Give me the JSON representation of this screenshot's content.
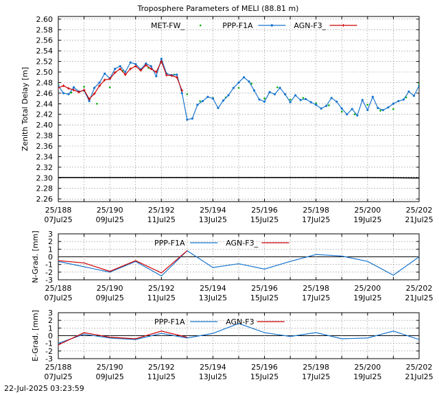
{
  "figure": {
    "title": "Troposphere Parameters of MELI (88.81 m)",
    "timestamp": "22-Jul-2025 03:23:59"
  },
  "x_ticks": [
    {
      "line1": "25/188",
      "line2": "07Jul25",
      "day": 188
    },
    {
      "line1": "25/190",
      "line2": "09Jul25",
      "day": 190
    },
    {
      "line1": "25/192",
      "line2": "11Jul25",
      "day": 192
    },
    {
      "line1": "25/194",
      "line2": "13Jul25",
      "day": 194
    },
    {
      "line1": "25/196",
      "line2": "15Jul25",
      "day": 196
    },
    {
      "line1": "25/198",
      "line2": "17Jul25",
      "day": 198
    },
    {
      "line1": "25/200",
      "line2": "19Jul25",
      "day": 200
    },
    {
      "line1": "25/202",
      "line2": "21Jul25",
      "day": 202
    }
  ],
  "colors": {
    "met": "#00aa00",
    "ppp": "#1874cd",
    "agn": "#cc0000",
    "flat": "#000000"
  },
  "chart_data": [
    {
      "type": "line",
      "id": "ztd",
      "ylabel": "Zenith Total Delay [m]",
      "xlim": [
        188,
        202
      ],
      "ylim": [
        2.255,
        2.605
      ],
      "yticks": [
        2.26,
        2.28,
        2.3,
        2.32,
        2.34,
        2.36,
        2.38,
        2.4,
        2.42,
        2.44,
        2.46,
        2.48,
        2.5,
        2.52,
        2.54,
        2.56,
        2.58,
        2.6
      ],
      "grid": true,
      "legend_placement": "top-center",
      "series": [
        {
          "name": "MET-FW_",
          "style": "dots",
          "color": "#00aa00",
          "x": [
            188.0,
            188.5,
            189.0,
            189.5,
            190.0,
            190.5,
            191.0,
            191.5,
            192.0,
            192.5,
            193.0,
            193.5,
            194.0,
            194.5,
            195.0,
            195.5,
            196.0,
            196.5,
            197.0,
            197.5,
            198.0,
            198.5,
            199.0,
            199.5,
            200.0,
            200.5,
            201.0,
            201.5,
            202.0
          ],
          "y": [
            2.476,
            2.461,
            2.472,
            2.44,
            2.471,
            2.502,
            2.515,
            2.508,
            2.525,
            2.495,
            2.458,
            2.445,
            2.451,
            2.452,
            2.47,
            2.478,
            2.45,
            2.471,
            2.448,
            2.451,
            2.441,
            2.437,
            2.425,
            2.42,
            2.438,
            2.427,
            2.43,
            2.452,
            2.478
          ]
        },
        {
          "name": "PPP-F1A",
          "style": "line-dots",
          "color": "#1874cd",
          "x": [
            188.0,
            188.2,
            188.4,
            188.6,
            188.8,
            189.0,
            189.2,
            189.4,
            189.6,
            189.8,
            190.0,
            190.2,
            190.4,
            190.6,
            190.8,
            191.0,
            191.2,
            191.4,
            191.6,
            191.8,
            192.0,
            192.2,
            192.4,
            192.6,
            192.8,
            193.0,
            193.2,
            193.4,
            193.6,
            193.8,
            194.0,
            194.2,
            194.4,
            194.6,
            194.8,
            195.0,
            195.2,
            195.4,
            195.6,
            195.8,
            196.0,
            196.2,
            196.4,
            196.6,
            196.8,
            197.0,
            197.2,
            197.4,
            197.6,
            197.8,
            198.0,
            198.2,
            198.4,
            198.6,
            198.8,
            199.0,
            199.2,
            199.4,
            199.6,
            199.8,
            200.0,
            200.2,
            200.4,
            200.6,
            200.8,
            201.0,
            201.2,
            201.4,
            201.6,
            201.8,
            202.0
          ],
          "y": [
            2.474,
            2.46,
            2.458,
            2.471,
            2.463,
            2.465,
            2.445,
            2.47,
            2.48,
            2.497,
            2.488,
            2.506,
            2.511,
            2.5,
            2.518,
            2.515,
            2.505,
            2.516,
            2.511,
            2.492,
            2.525,
            2.497,
            2.494,
            2.495,
            2.46,
            2.41,
            2.412,
            2.438,
            2.445,
            2.453,
            2.45,
            2.432,
            2.446,
            2.456,
            2.47,
            2.48,
            2.49,
            2.482,
            2.465,
            2.448,
            2.444,
            2.462,
            2.458,
            2.47,
            2.458,
            2.443,
            2.456,
            2.447,
            2.449,
            2.443,
            2.438,
            2.431,
            2.436,
            2.451,
            2.444,
            2.431,
            2.42,
            2.43,
            2.418,
            2.447,
            2.428,
            2.453,
            2.432,
            2.428,
            2.433,
            2.44,
            2.445,
            2.448,
            2.463,
            2.455,
            2.474
          ]
        },
        {
          "name": "AGN-F3_",
          "style": "line-plus",
          "color": "#cc0000",
          "x": [
            188.0,
            188.2,
            188.4,
            188.6,
            188.8,
            189.0,
            189.2,
            189.4,
            189.6,
            189.8,
            190.0,
            190.2,
            190.4,
            190.6,
            190.8,
            191.0,
            191.2,
            191.4,
            191.6,
            191.8,
            192.0,
            192.2,
            192.4,
            192.6,
            192.8
          ],
          "y": [
            2.47,
            2.474,
            2.469,
            2.466,
            2.462,
            2.466,
            2.449,
            2.459,
            2.474,
            2.485,
            2.487,
            2.499,
            2.506,
            2.495,
            2.506,
            2.511,
            2.503,
            2.513,
            2.506,
            2.5,
            2.52,
            2.494,
            2.493,
            2.49,
            2.465
          ]
        },
        {
          "name": "",
          "style": "flat",
          "color": "#000000",
          "x": [
            188.0,
            190.0,
            192.0,
            194.0,
            196.0,
            198.0,
            200.0,
            201.0,
            202.0
          ],
          "y": [
            2.3005,
            2.3005,
            2.3005,
            2.3005,
            2.3005,
            2.3005,
            2.3005,
            2.3,
            2.2995
          ]
        }
      ]
    },
    {
      "type": "line",
      "id": "ngrad",
      "ylabel": "N-Grad. [mm]",
      "xlim": [
        188,
        202
      ],
      "ylim": [
        -3,
        3
      ],
      "yticks": [
        -3,
        -2,
        -1,
        0,
        1,
        2,
        3
      ],
      "grid": true,
      "legend_placement": "top-center",
      "series": [
        {
          "name": "PPP-F1A",
          "color": "#1874cd",
          "x": [
            188,
            189,
            190,
            191,
            192,
            193,
            194,
            195,
            196,
            197,
            198,
            199,
            200,
            201,
            202
          ],
          "y": [
            -0.6,
            -1.3,
            -2.0,
            -0.6,
            -2.5,
            0.8,
            -1.4,
            -0.9,
            -1.6,
            -0.6,
            0.3,
            0.1,
            -0.6,
            -2.4,
            0.0
          ]
        },
        {
          "name": "AGN-F3_",
          "color": "#cc0000",
          "x": [
            188,
            189,
            190,
            191,
            192,
            193
          ],
          "y": [
            -0.5,
            -0.8,
            -1.9,
            -0.5,
            -2.1,
            0.8
          ]
        }
      ]
    },
    {
      "type": "line",
      "id": "egrad",
      "ylabel": "E-Grad. [mm]",
      "xlim": [
        188,
        202
      ],
      "ylim": [
        -3,
        3
      ],
      "yticks": [
        -3,
        -2,
        -1,
        0,
        1,
        2,
        3
      ],
      "grid": true,
      "legend_placement": "top-center",
      "series": [
        {
          "name": "PPP-F1A",
          "color": "#1874cd",
          "x": [
            188,
            189,
            190,
            191,
            192,
            193,
            194,
            195,
            196,
            197,
            198,
            199,
            200,
            201,
            202
          ],
          "y": [
            -1.0,
            0.2,
            -0.3,
            -0.5,
            0.3,
            -0.3,
            0.3,
            1.6,
            0.4,
            -0.1,
            0.4,
            -0.4,
            -0.3,
            0.6,
            -0.5
          ]
        },
        {
          "name": "AGN-F3",
          "color": "#cc0000",
          "x": [
            188,
            189,
            190,
            191,
            192,
            193
          ],
          "y": [
            -1.2,
            0.4,
            -0.2,
            -0.4,
            0.6,
            -0.2
          ]
        }
      ]
    }
  ]
}
